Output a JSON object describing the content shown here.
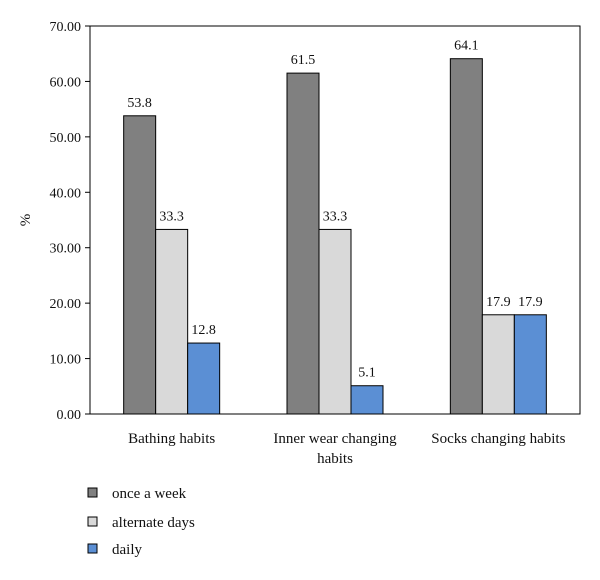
{
  "chart_data": {
    "type": "bar",
    "categories": [
      [
        "Bathing habits"
      ],
      [
        "Inner wear changing",
        "habits"
      ],
      [
        "Socks changing habits"
      ]
    ],
    "series": [
      {
        "name": "once a week",
        "values": [
          53.8,
          61.5,
          64.1
        ],
        "color": "#808080"
      },
      {
        "name": "alternate days",
        "values": [
          33.3,
          33.3,
          17.9
        ],
        "color": "#d9d9d9"
      },
      {
        "name": "daily",
        "values": [
          12.8,
          5.1,
          17.9
        ],
        "color": "#5b8fd4"
      }
    ],
    "yticks": [
      "0.00",
      "10.00",
      "20.00",
      "30.00",
      "40.00",
      "50.00",
      "60.00",
      "70.00"
    ],
    "ylim": [
      0,
      70
    ],
    "ylabel": "%",
    "xlabel": "",
    "title": "",
    "grid": false,
    "legend": "bottom-left"
  }
}
